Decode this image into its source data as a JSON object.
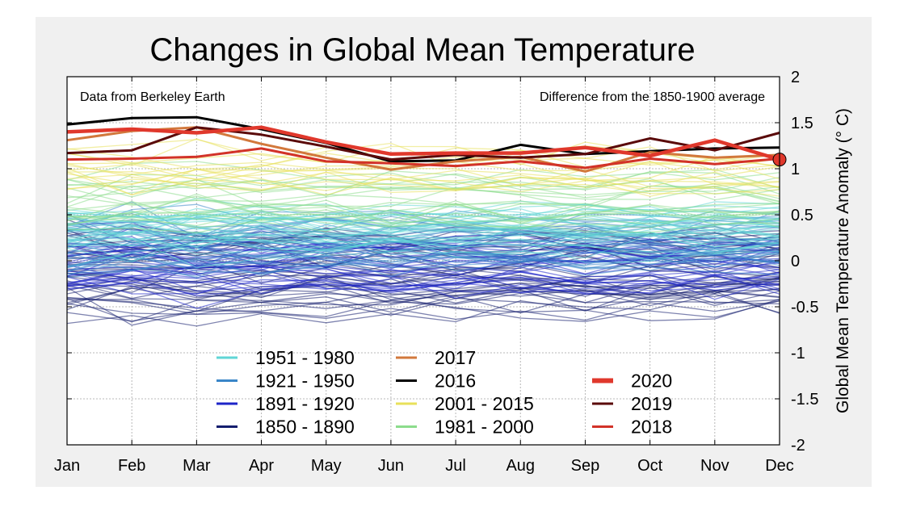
{
  "chart_data": {
    "type": "line",
    "title": "Changes in Global Mean Temperature",
    "source_note": "Data from Berkeley Earth",
    "baseline_note": "Difference from the 1850-1900 average",
    "ylabel": "Global Mean Temperature Anomaly (° C)",
    "xlabel": "",
    "ylim": [
      -2,
      2
    ],
    "y_ticks": [
      2,
      1.5,
      1,
      0.5,
      0,
      -0.5,
      -1,
      -1.5,
      -2
    ],
    "y_tick_labels": [
      "2",
      "1.5",
      "1",
      "0.5",
      "0",
      "-0.5",
      "-1",
      "-1.5",
      "-2"
    ],
    "y_axis_position": "right",
    "grid": true,
    "legend_position": "bottom-center",
    "x": [
      "Jan",
      "Feb",
      "Mar",
      "Apr",
      "May",
      "Jun",
      "Jul",
      "Aug",
      "Sep",
      "Oct",
      "Nov",
      "Dec"
    ],
    "legend": [
      {
        "label": "1951 - 1980",
        "color": "#5fd6d6"
      },
      {
        "label": "1921 - 1950",
        "color": "#3a86c8"
      },
      {
        "label": "1891 - 1920",
        "color": "#1e24c8"
      },
      {
        "label": "1850 - 1890",
        "color": "#141e6e"
      },
      {
        "label": "2017",
        "color": "#d2783c"
      },
      {
        "label": "2016",
        "color": "#000000"
      },
      {
        "label": "2001 - 2015",
        "color": "#e8e05a"
      },
      {
        "label": "1981 - 2000",
        "color": "#8cdc8c"
      },
      {
        "label": "2020",
        "color": "#e0382c"
      },
      {
        "label": "2019",
        "color": "#5a0a0a"
      },
      {
        "label": "2018",
        "color": "#d23228"
      }
    ],
    "series": [
      {
        "name": "2016",
        "color": "#000000",
        "values": [
          1.48,
          1.55,
          1.56,
          1.43,
          1.28,
          1.08,
          1.09,
          1.26,
          1.16,
          1.19,
          1.22,
          1.23
        ]
      },
      {
        "name": "2017",
        "color": "#d2783c",
        "values": [
          1.31,
          1.41,
          1.45,
          1.27,
          1.12,
          0.99,
          1.08,
          1.13,
          0.97,
          1.18,
          1.12,
          1.15
        ]
      },
      {
        "name": "2018",
        "color": "#d23228",
        "values": [
          1.1,
          1.11,
          1.13,
          1.22,
          1.08,
          1.06,
          1.03,
          1.08,
          1.01,
          1.11,
          1.05,
          1.11
        ]
      },
      {
        "name": "2019",
        "color": "#5a0a0a",
        "values": [
          1.17,
          1.2,
          1.45,
          1.37,
          1.24,
          1.1,
          1.15,
          1.12,
          1.16,
          1.33,
          1.2,
          1.39
        ]
      },
      {
        "name": "2020",
        "color": "#e0382c",
        "values": [
          1.4,
          1.43,
          1.39,
          1.45,
          1.29,
          1.16,
          1.17,
          1.17,
          1.23,
          1.14,
          1.31,
          1.1
        ]
      }
    ],
    "band_series": [
      {
        "name": "2001 - 2015",
        "color": "#e8e05a",
        "count": 15,
        "low": 0.78,
        "high": 1.18
      },
      {
        "name": "1981 - 2000",
        "color": "#8cdc8c",
        "count": 20,
        "low": 0.4,
        "high": 0.88
      },
      {
        "name": "1951 - 1980",
        "color": "#5fd6d6",
        "count": 30,
        "low": 0.1,
        "high": 0.52
      },
      {
        "name": "1921 - 1950",
        "color": "#3a86c8",
        "count": 30,
        "low": -0.05,
        "high": 0.45
      },
      {
        "name": "1891 - 1920",
        "color": "#1e24c8",
        "count": 30,
        "low": -0.35,
        "high": 0.22
      },
      {
        "name": "1850 - 1890",
        "color": "#141e6e",
        "count": 41,
        "low": -0.55,
        "high": 0.25
      }
    ],
    "marker": {
      "x": "Dec",
      "y": 1.1,
      "color": "#e0382c"
    }
  }
}
